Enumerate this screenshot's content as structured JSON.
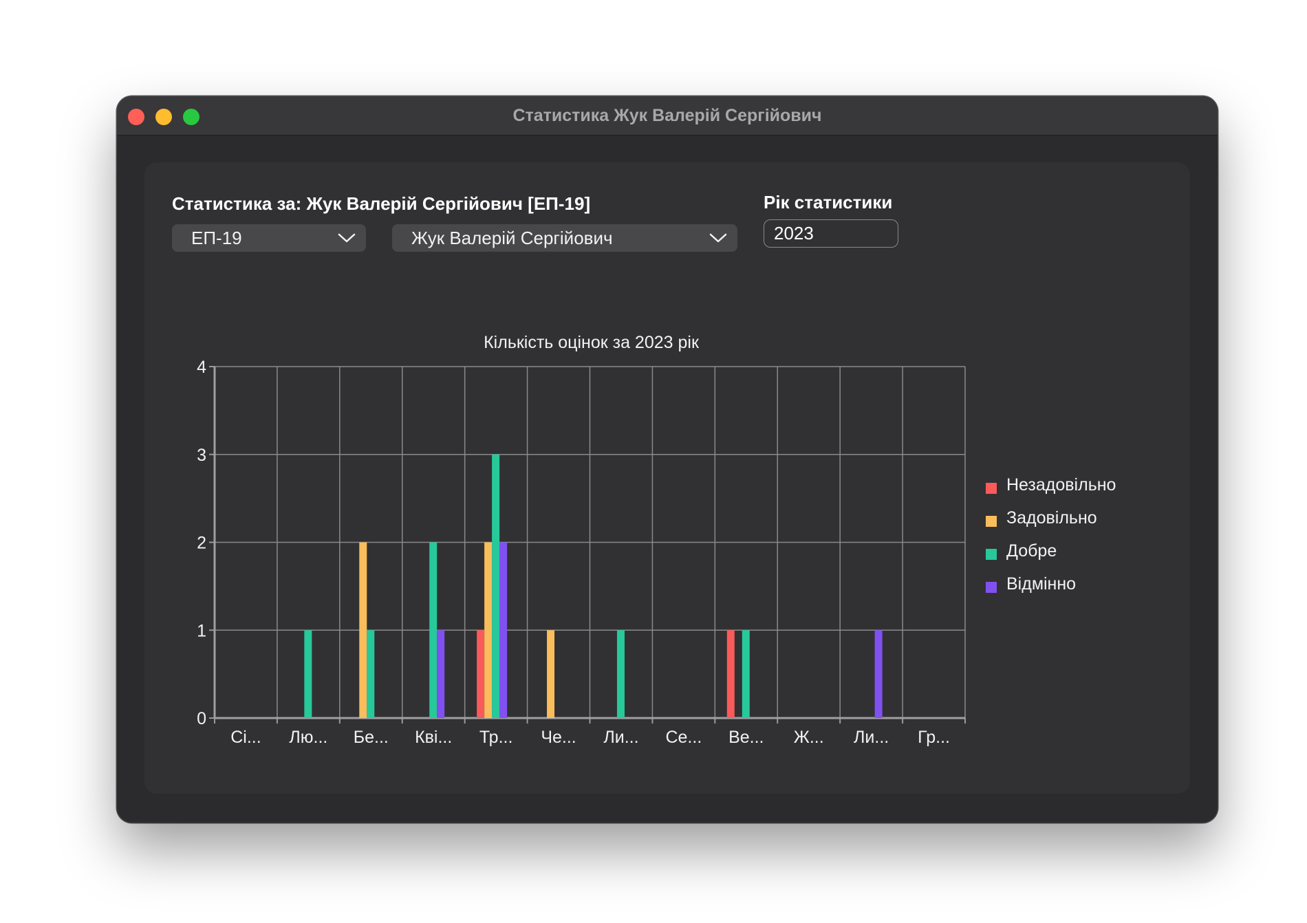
{
  "window": {
    "title": "Статистика Жук Валерій Сергійович"
  },
  "form": {
    "stat_label": "Статистика за: Жук Валерій Сергійович [ЕП-19]",
    "year_label": "Рік статистики",
    "group_select": {
      "value": "ЕП-19"
    },
    "student_select": {
      "value": "Жук Валерій Сергійович"
    },
    "year_input": {
      "value": "2023"
    }
  },
  "chart_data": {
    "type": "bar",
    "title": "Кількість оцінок за 2023 рік",
    "categories": [
      "Сі...",
      "Лю...",
      "Бе...",
      "Кві...",
      "Тр...",
      "Че...",
      "Ли...",
      "Се...",
      "Ве...",
      "Ж...",
      "Ли...",
      "Гр..."
    ],
    "series": [
      {
        "name": "Незадовільно",
        "color": "#f95a5a",
        "values": [
          0,
          0,
          0,
          0,
          1,
          0,
          0,
          0,
          1,
          0,
          0,
          0
        ]
      },
      {
        "name": "Задовільно",
        "color": "#f9bd5c",
        "values": [
          0,
          0,
          2,
          0,
          2,
          1,
          0,
          0,
          0,
          0,
          0,
          0
        ]
      },
      {
        "name": "Добре",
        "color": "#27c99a",
        "values": [
          0,
          1,
          1,
          2,
          3,
          0,
          1,
          0,
          1,
          0,
          0,
          0
        ]
      },
      {
        "name": "Відмінно",
        "color": "#8051f0",
        "values": [
          0,
          0,
          0,
          1,
          2,
          0,
          0,
          0,
          0,
          0,
          1,
          0
        ]
      }
    ],
    "ylim": [
      0,
      4
    ],
    "yticks": [
      0,
      1,
      2,
      3,
      4
    ],
    "xlabel": "",
    "ylabel": "",
    "grid": true,
    "legend_position": "right"
  }
}
